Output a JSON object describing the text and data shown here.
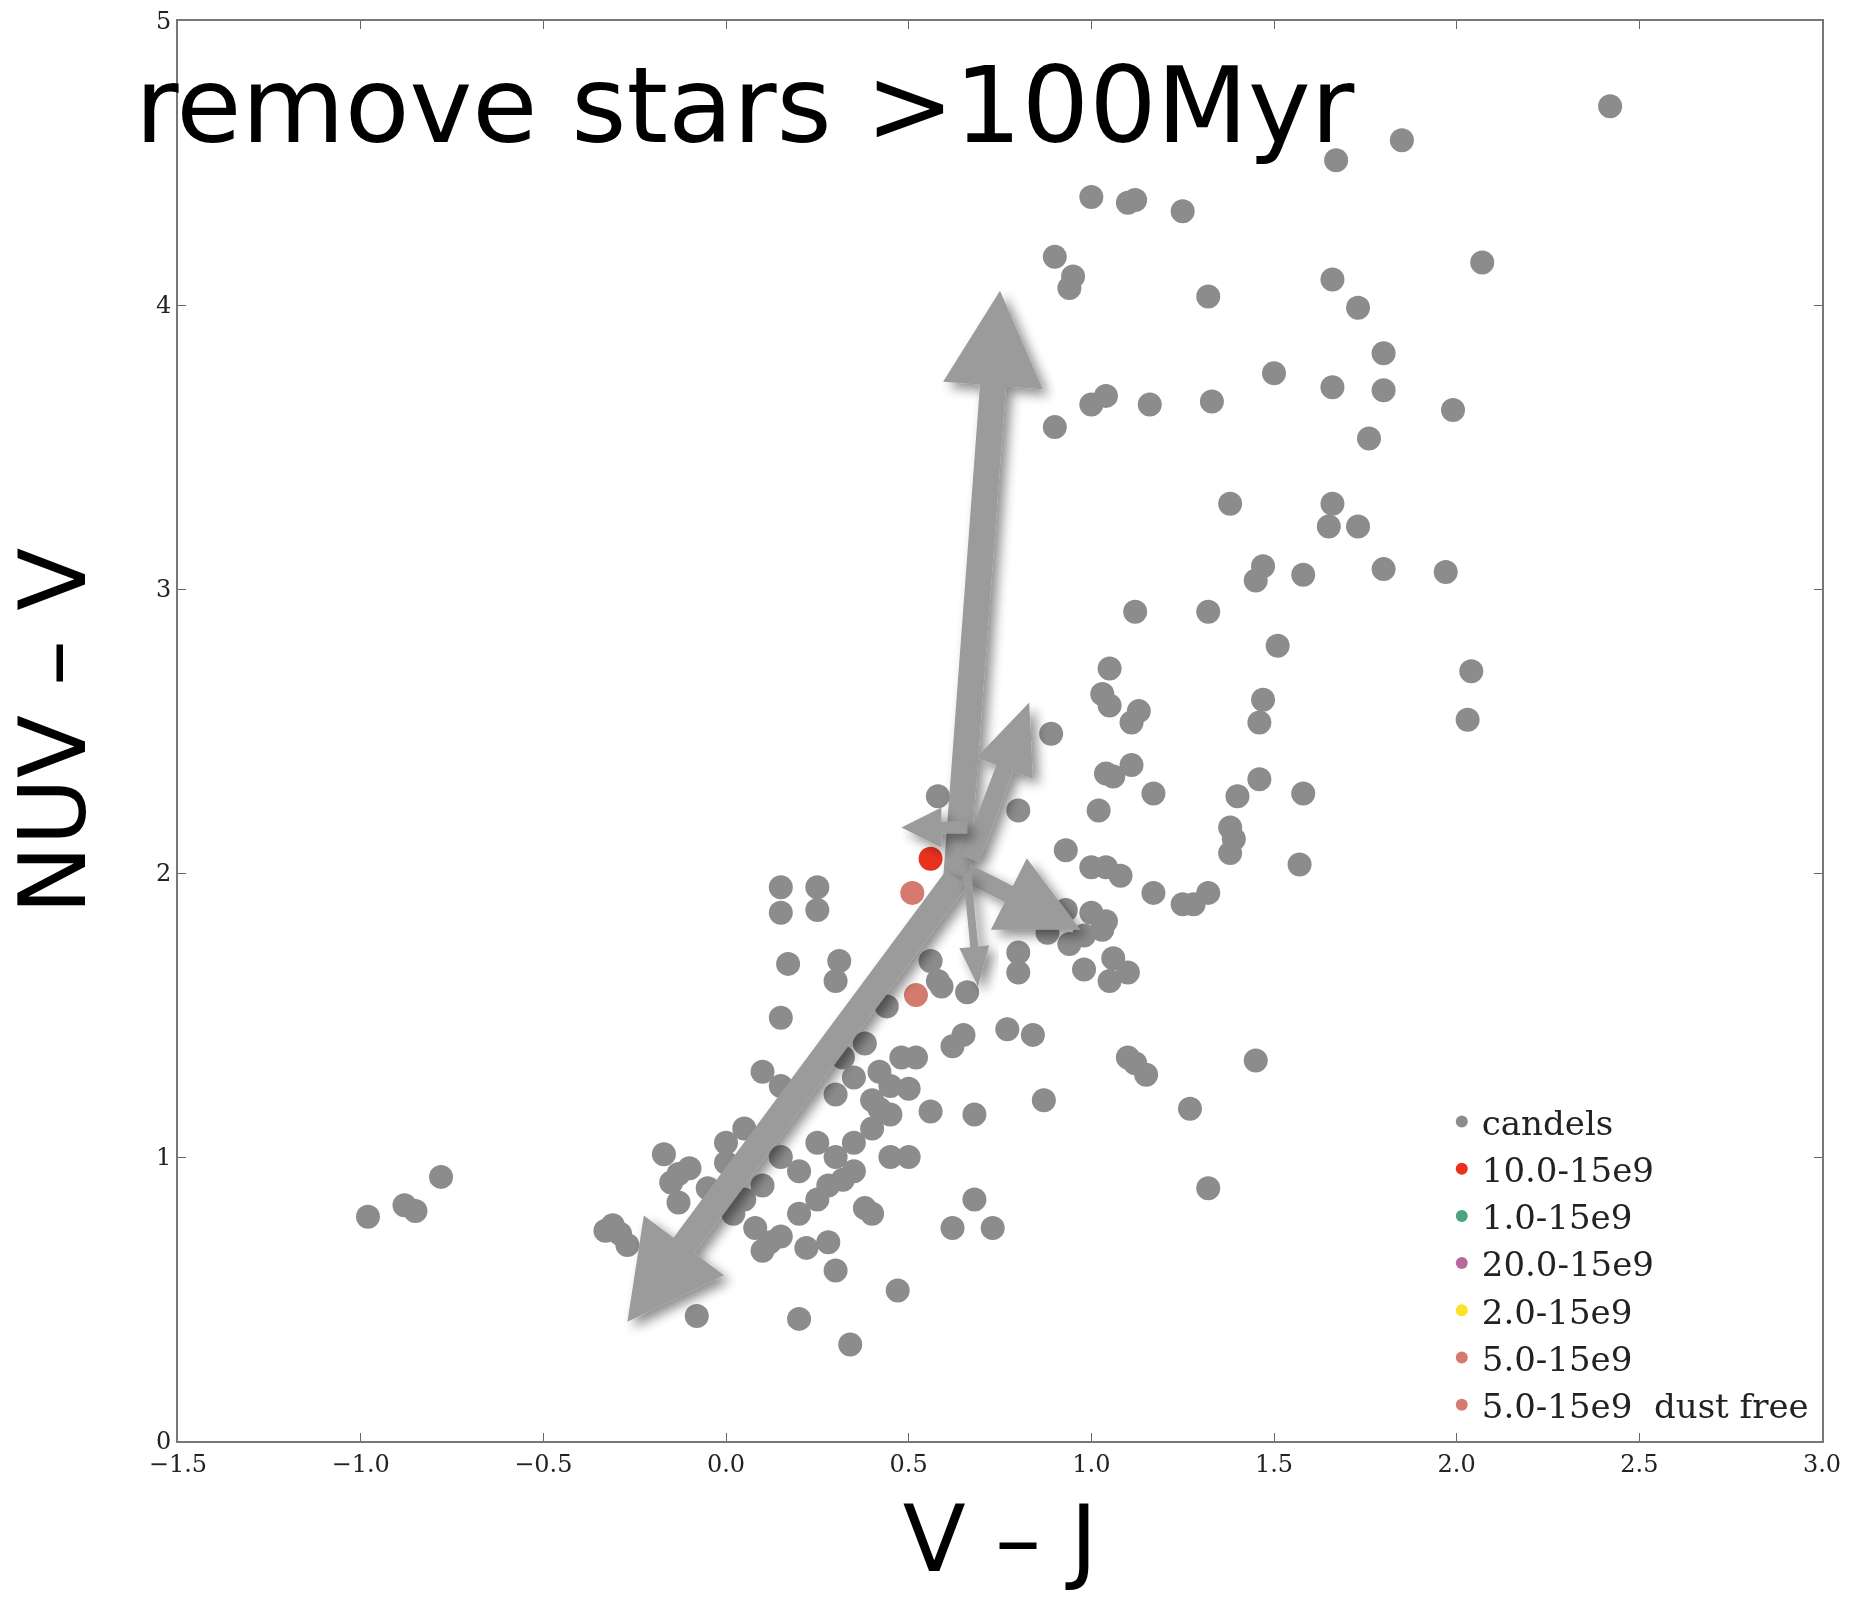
{
  "chart_data": {
    "type": "scatter",
    "title": "remove stars >100Myr",
    "xlabel": "V – J",
    "ylabel": "NUV – V",
    "xlim": [
      -1.5,
      3.0
    ],
    "xticks": [
      {
        "value": -1.5,
        "label": "−1.5"
      },
      {
        "value": -1,
        "label": "−1.0"
      },
      {
        "value": -0.5,
        "label": "−0.5"
      },
      {
        "value": 0,
        "label": "0.0"
      },
      {
        "value": 0.5,
        "label": "0.5"
      },
      {
        "value": 1,
        "label": "1.0"
      },
      {
        "value": 1.5,
        "label": "1.5"
      },
      {
        "value": 2,
        "label": "2.0"
      },
      {
        "value": 2.5,
        "label": "2.5"
      },
      {
        "value": 3,
        "label": "3.0"
      }
    ],
    "ylim": [
      0,
      5
    ],
    "yticks": [
      0,
      1,
      2,
      3,
      4,
      5
    ],
    "grid": false,
    "legend": "bottom right",
    "marker": "circle",
    "series": [
      {
        "name": "candels",
        "color": "#8c8c8c",
        "x": [
          2.42,
          1.85,
          1.67,
          1.0,
          1.1,
          1.12,
          1.25,
          0.9,
          0.95,
          0.94,
          1.32,
          1.66,
          1.73,
          2.07,
          1.8,
          1.5,
          1.66,
          1.8,
          1.0,
          1.04,
          1.16,
          1.33,
          0.9,
          1.99,
          1.76,
          1.38,
          1.66,
          1.65,
          1.73,
          1.47,
          1.45,
          1.58,
          1.8,
          1.97,
          1.12,
          1.32,
          1.51,
          1.05,
          2.04,
          1.03,
          1.05,
          1.47,
          1.11,
          1.13,
          1.46,
          2.03,
          0.89,
          1.04,
          1.06,
          1.11,
          1.46,
          1.17,
          1.4,
          1.58,
          0.8,
          1.02,
          1.38,
          1.39,
          1.38,
          0.93,
          1.0,
          1.04,
          1.08,
          1.57,
          1.17,
          1.25,
          1.28,
          1.32,
          0.93,
          1.0,
          1.04,
          1.03,
          0.98,
          0.94,
          1.06,
          1.1,
          1.05,
          0.98,
          0.8,
          0.8,
          0.88,
          1.45,
          1.1,
          1.12,
          1.15,
          0.87,
          1.27,
          1.32,
          0.77,
          0.84,
          0.65,
          0.62,
          0.68,
          0.62,
          0.68,
          0.73,
          0.47,
          0.34,
          0.2,
          0.3,
          -0.98,
          -0.88,
          -0.85,
          -0.78,
          -0.33,
          -0.31,
          -0.29,
          -0.27,
          -0.08,
          -0.17,
          -0.15,
          -0.13,
          -0.1,
          -0.13,
          -0.05,
          0.0,
          0.15,
          0.25,
          0.15,
          0.25,
          0.17,
          0.31,
          0.15,
          0.3,
          0.44,
          0.56,
          0.58,
          0.59,
          0.66,
          0.58,
          0.1,
          0.15,
          0.3,
          0.32,
          0.35,
          0.38,
          0.4,
          0.42,
          0.45,
          0.48,
          0.4,
          0.35,
          0.3,
          0.25,
          0.2,
          0.15,
          0.1,
          0.05,
          0.08,
          0.12,
          0.1,
          0.15,
          0.2,
          0.25,
          0.28,
          0.32,
          0.35,
          0.38,
          0.4,
          0.42,
          0.45,
          0.5,
          0.52,
          0.56,
          0.28,
          0.22,
          0.05,
          0.0,
          0.02,
          0.45,
          0.5
        ],
        "values": [
          4.7,
          4.58,
          4.51,
          4.38,
          4.36,
          4.37,
          4.33,
          4.17,
          4.1,
          4.06,
          4.03,
          4.09,
          3.99,
          4.15,
          3.83,
          3.76,
          3.71,
          3.7,
          3.65,
          3.68,
          3.65,
          3.66,
          3.57,
          3.63,
          3.53,
          3.3,
          3.3,
          3.22,
          3.22,
          3.08,
          3.03,
          3.05,
          3.07,
          3.06,
          2.92,
          2.92,
          2.8,
          2.72,
          2.71,
          2.63,
          2.59,
          2.61,
          2.53,
          2.57,
          2.53,
          2.54,
          2.49,
          2.35,
          2.34,
          2.38,
          2.33,
          2.28,
          2.27,
          2.28,
          2.22,
          2.22,
          2.16,
          2.12,
          2.07,
          2.08,
          2.02,
          2.02,
          1.99,
          2.03,
          1.93,
          1.89,
          1.89,
          1.93,
          1.87,
          1.86,
          1.83,
          1.8,
          1.78,
          1.75,
          1.7,
          1.65,
          1.62,
          1.66,
          1.72,
          1.65,
          1.79,
          1.34,
          1.35,
          1.33,
          1.29,
          1.2,
          1.17,
          0.89,
          1.45,
          1.43,
          1.43,
          1.39,
          1.15,
          0.75,
          0.85,
          0.75,
          0.53,
          0.34,
          0.43,
          0.6,
          0.79,
          0.83,
          0.81,
          0.93,
          0.74,
          0.76,
          0.73,
          0.69,
          0.44,
          1.01,
          0.91,
          0.94,
          0.96,
          0.84,
          0.89,
          0.98,
          1.95,
          1.95,
          1.86,
          1.87,
          1.68,
          1.69,
          1.49,
          1.62,
          1.53,
          1.69,
          1.62,
          1.6,
          1.58,
          2.27,
          1.3,
          1.25,
          1.22,
          1.35,
          1.28,
          1.4,
          1.2,
          1.3,
          1.15,
          1.35,
          1.1,
          1.05,
          1.0,
          1.05,
          0.95,
          1.0,
          0.9,
          0.85,
          0.75,
          0.7,
          0.67,
          0.72,
          0.8,
          0.85,
          0.9,
          0.92,
          0.95,
          0.82,
          0.8,
          1.17,
          1.25,
          1.24,
          1.35,
          1.16,
          0.7,
          0.68,
          1.1,
          1.05,
          0.8,
          1.0,
          1.0
        ]
      },
      {
        "name": "10.0-15e9",
        "color": "#e8321e",
        "x": [
          0.56
        ],
        "values": [
          2.05
        ]
      },
      {
        "name": "1.0-15e9",
        "color": "#4aa57f"
      },
      {
        "name": "20.0-15e9",
        "color": "#b8699a"
      },
      {
        "name": "2.0-15e9",
        "color": "#fce22a"
      },
      {
        "name": "5.0-15e9",
        "color": "#d57a6e",
        "x": [
          0.51,
          0.52
        ],
        "values": [
          1.93,
          1.57
        ]
      },
      {
        "name": "5.0-15e9  dust free",
        "color": "#d57a6e"
      }
    ]
  }
}
